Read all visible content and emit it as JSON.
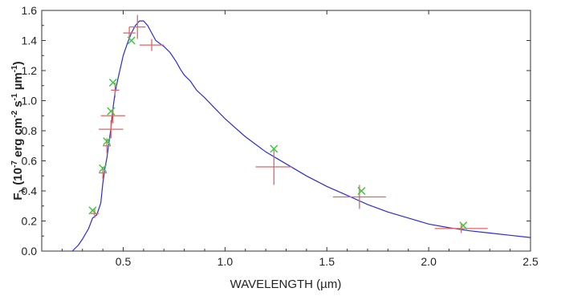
{
  "chart_data": {
    "type": "line",
    "title": "",
    "xlabel": "WAVELENGTH (µm)",
    "ylabel": {
      "prefix": "F",
      "subscript": "λ",
      "open": " (10",
      "exp1": "-7",
      "mid1": " erg cm",
      "exp2": "-2",
      "mid2": " s",
      "exp3": "-1",
      "mid3": " µm",
      "exp4": "-1",
      "close": ")"
    },
    "xlim": [
      0.1,
      2.5
    ],
    "ylim": [
      0.0,
      1.6
    ],
    "xticks": [
      0.5,
      1.0,
      1.5,
      2.0,
      2.5
    ],
    "xtick_labels": [
      "0.5",
      "1.0",
      "1.5",
      "2.0",
      "2.5"
    ],
    "yticks": [
      0.0,
      0.2,
      0.4,
      0.6,
      0.8,
      1.0,
      1.2,
      1.4,
      1.6
    ],
    "ytick_labels": [
      "0.0",
      "0.2",
      "0.4",
      "0.6",
      "0.8",
      "1.0",
      "1.2",
      "1.4",
      "1.6"
    ],
    "grid": false,
    "colors": {
      "spectrum": "#2b2bd6",
      "observed": "#e06464",
      "model": "#3cc83c",
      "frame": "#333333"
    },
    "series": [
      {
        "kind": "spectrum",
        "x": [
          0.25,
          0.28,
          0.3,
          0.33,
          0.35,
          0.37,
          0.38,
          0.39,
          0.4,
          0.41,
          0.42,
          0.43,
          0.44,
          0.45,
          0.46,
          0.47,
          0.48,
          0.49,
          0.5,
          0.52,
          0.54,
          0.56,
          0.58,
          0.6,
          0.62,
          0.64,
          0.66,
          0.68,
          0.7,
          0.73,
          0.76,
          0.78,
          0.8,
          0.83,
          0.86,
          0.9,
          0.95,
          1.0,
          1.05,
          1.1,
          1.15,
          1.2,
          1.25,
          1.3,
          1.4,
          1.5,
          1.6,
          1.7,
          1.8,
          1.9,
          2.0,
          2.1,
          2.2,
          2.3,
          2.4,
          2.5
        ],
        "y": [
          0.0,
          0.04,
          0.08,
          0.15,
          0.22,
          0.24,
          0.28,
          0.32,
          0.45,
          0.55,
          0.62,
          0.72,
          0.82,
          0.95,
          1.05,
          1.12,
          1.18,
          1.24,
          1.3,
          1.38,
          1.45,
          1.5,
          1.53,
          1.53,
          1.5,
          1.45,
          1.4,
          1.38,
          1.36,
          1.32,
          1.26,
          1.21,
          1.17,
          1.13,
          1.07,
          1.02,
          0.95,
          0.88,
          0.82,
          0.76,
          0.71,
          0.66,
          0.62,
          0.58,
          0.5,
          0.43,
          0.37,
          0.31,
          0.26,
          0.22,
          0.18,
          0.155,
          0.135,
          0.12,
          0.105,
          0.09
        ]
      },
      {
        "kind": "observed_points",
        "points": [
          {
            "x": 0.36,
            "y": 0.25,
            "xerr": 0.02,
            "yerr": 0.03
          },
          {
            "x": 0.4,
            "y": 0.52,
            "xerr": 0.02,
            "yerr": 0.04
          },
          {
            "x": 0.42,
            "y": 0.7,
            "xerr": 0.02,
            "yerr": 0.05
          },
          {
            "x": 0.44,
            "y": 0.81,
            "xerr": 0.06,
            "yerr": 0.06
          },
          {
            "x": 0.45,
            "y": 0.9,
            "xerr": 0.06,
            "yerr": 0.05
          },
          {
            "x": 0.46,
            "y": 1.07,
            "xerr": 0.02,
            "yerr": 0.05
          },
          {
            "x": 0.53,
            "y": 1.45,
            "xerr": 0.03,
            "yerr": 0.04
          },
          {
            "x": 0.57,
            "y": 1.49,
            "xerr": 0.04,
            "yerr": 0.08
          },
          {
            "x": 0.64,
            "y": 1.37,
            "xerr": 0.06,
            "yerr": 0.04
          },
          {
            "x": 1.24,
            "y": 0.56,
            "xerr": 0.09,
            "yerr": 0.12
          },
          {
            "x": 1.66,
            "y": 0.36,
            "xerr": 0.13,
            "yerr": 0.08
          },
          {
            "x": 2.16,
            "y": 0.15,
            "xerr": 0.13,
            "yerr": 0.03
          }
        ]
      },
      {
        "kind": "model_points",
        "points": [
          {
            "x": 0.35,
            "y": 0.27
          },
          {
            "x": 0.4,
            "y": 0.55
          },
          {
            "x": 0.42,
            "y": 0.73
          },
          {
            "x": 0.44,
            "y": 0.93
          },
          {
            "x": 0.45,
            "y": 1.12
          },
          {
            "x": 0.54,
            "y": 1.4
          },
          {
            "x": 1.24,
            "y": 0.68
          },
          {
            "x": 1.67,
            "y": 0.4
          },
          {
            "x": 2.17,
            "y": 0.17
          }
        ]
      }
    ]
  }
}
